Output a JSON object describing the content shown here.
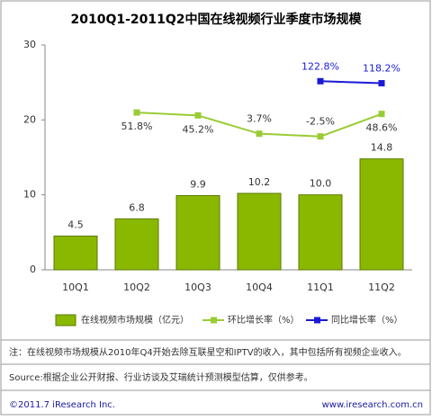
{
  "chart_data": {
    "type": "bar",
    "title": "2010Q1-2011Q2中国在线视频行业季度市场规模",
    "categories": [
      "10Q1",
      "10Q2",
      "10Q3",
      "10Q4",
      "11Q1",
      "11Q2"
    ],
    "ylim": [
      0,
      30
    ],
    "yticks": [
      0,
      10,
      20,
      30
    ],
    "y2lim": [
      -305,
      205
    ],
    "grid": false,
    "legend": "bottom",
    "series": [
      {
        "name": "在线视频市场规模（亿元）",
        "type": "bar",
        "color": "#8ab800",
        "values": [
          4.5,
          6.8,
          9.9,
          10.2,
          10.0,
          14.8
        ],
        "value_labels": [
          "4.5",
          "6.8",
          "9.9",
          "10.2",
          "10.0",
          "14.8"
        ]
      },
      {
        "name": "环比增长率（%）",
        "type": "line",
        "axis": "y2",
        "color": "#99cc33",
        "values": [
          null,
          51.8,
          45.2,
          3.7,
          -2.5,
          48.6
        ],
        "value_labels": [
          null,
          "51.8%",
          "45.2%",
          "3.7%",
          "-2.5%",
          "48.6%"
        ]
      },
      {
        "name": "同比增长率（%）",
        "type": "line",
        "axis": "y2",
        "color": "#1a1ad6",
        "values": [
          null,
          null,
          null,
          null,
          122.8,
          118.2
        ],
        "value_labels": [
          null,
          null,
          null,
          null,
          "122.8%",
          "118.2%"
        ]
      }
    ]
  },
  "notes": [
    "注：在线视频市场规模从2010年Q4开始去除互联星空和IPTV的收入，其中包括所有视频企业收入。",
    "Source:根据企业公开财报、行业访谈及艾瑞统计预测模型估算，仅供参考。"
  ],
  "footer": {
    "left": "©2011.7 iResearch Inc.",
    "right": "www.iresearch.com.cn"
  }
}
